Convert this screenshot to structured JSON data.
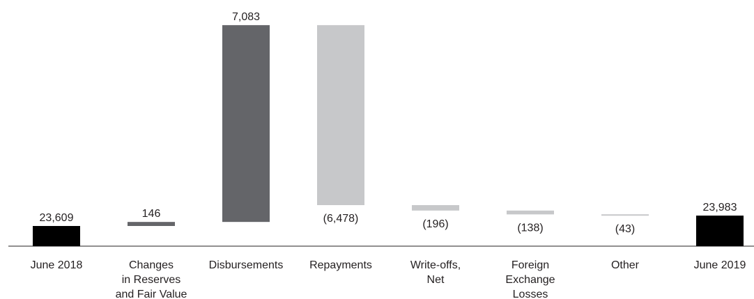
{
  "chart_data": {
    "type": "bar",
    "subtype": "waterfall",
    "title": "",
    "xlabel": "",
    "ylabel": "",
    "categories": [
      [
        "June 2018"
      ],
      [
        "Changes",
        "in Reserves",
        "and Fair Value"
      ],
      [
        "Disbursements"
      ],
      [
        "Repayments"
      ],
      [
        "Write-offs,",
        "Net"
      ],
      [
        "Foreign",
        "Exchange",
        "Losses"
      ],
      [
        "Other"
      ],
      [
        "June 2019"
      ]
    ],
    "values": [
      23609,
      146,
      7083,
      -6478,
      -196,
      -138,
      -43,
      23983
    ],
    "labels": [
      "23,609",
      "146",
      "7,083",
      "(6,478)",
      "(196)",
      "(138)",
      "(43)",
      "23,983"
    ],
    "kinds": [
      "total",
      "delta",
      "delta",
      "delta",
      "delta",
      "delta",
      "delta",
      "total"
    ],
    "colors": [
      "#000000",
      "#646569",
      "#646569",
      "#c7c8ca",
      "#c7c8ca",
      "#c7c8ca",
      "#c7c8ca",
      "#000000"
    ],
    "axis_color": "#231f20",
    "text_color": "#231f20",
    "grid": false,
    "legend": "none"
  }
}
